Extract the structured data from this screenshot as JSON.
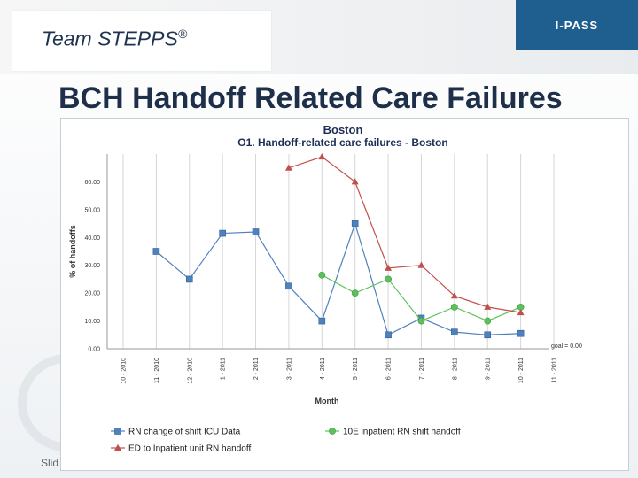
{
  "slide": {
    "brand": "Team STEPPS",
    "brand_mark": "®",
    "tag": "I-PASS",
    "title": "BCH Handoff Related Care Failures",
    "footer_text": "Slid"
  },
  "chart_data": {
    "type": "line",
    "title": "Boston",
    "subtitle": "O1. Handoff-related care failures - Boston",
    "xlabel": "Month",
    "ylabel": "% of handoffs",
    "categories": [
      "10 - 2010",
      "11 - 2010",
      "12 - 2010",
      "1 - 2011",
      "2 - 2011",
      "3 - 2011",
      "4 - 2011",
      "5 - 2011",
      "6 - 2011",
      "7 - 2011",
      "8 - 2011",
      "9 - 2011",
      "10 - 2011",
      "11 - 2011"
    ],
    "y_ticks": [
      "0.00",
      "10.00",
      "20.00",
      "30.00",
      "40.00",
      "50.00",
      "60.00"
    ],
    "ylim": [
      0,
      70
    ],
    "grid": "vertical",
    "series": [
      {
        "name": "RN change of shift ICU Data",
        "color": "#4f81bd",
        "marker": "square",
        "values": [
          null,
          35,
          25,
          41.5,
          42,
          22.5,
          10,
          45,
          5,
          11,
          6,
          5,
          5.5,
          null
        ]
      },
      {
        "name": "10E inpatient RN shift handoff",
        "color": "#5cc15c",
        "marker": "circle",
        "values": [
          null,
          null,
          null,
          null,
          null,
          null,
          26.5,
          20,
          25,
          10,
          15,
          10,
          15,
          null
        ]
      },
      {
        "name": "ED to Inpatient unit RN handoff",
        "color": "#c0504d",
        "marker": "triangle",
        "values": [
          null,
          null,
          null,
          null,
          null,
          65,
          69,
          60,
          29,
          30,
          19,
          15,
          13,
          null
        ]
      }
    ],
    "goal": {
      "label": "goal = 0.00",
      "value": 0
    },
    "legend_position": "bottom"
  }
}
